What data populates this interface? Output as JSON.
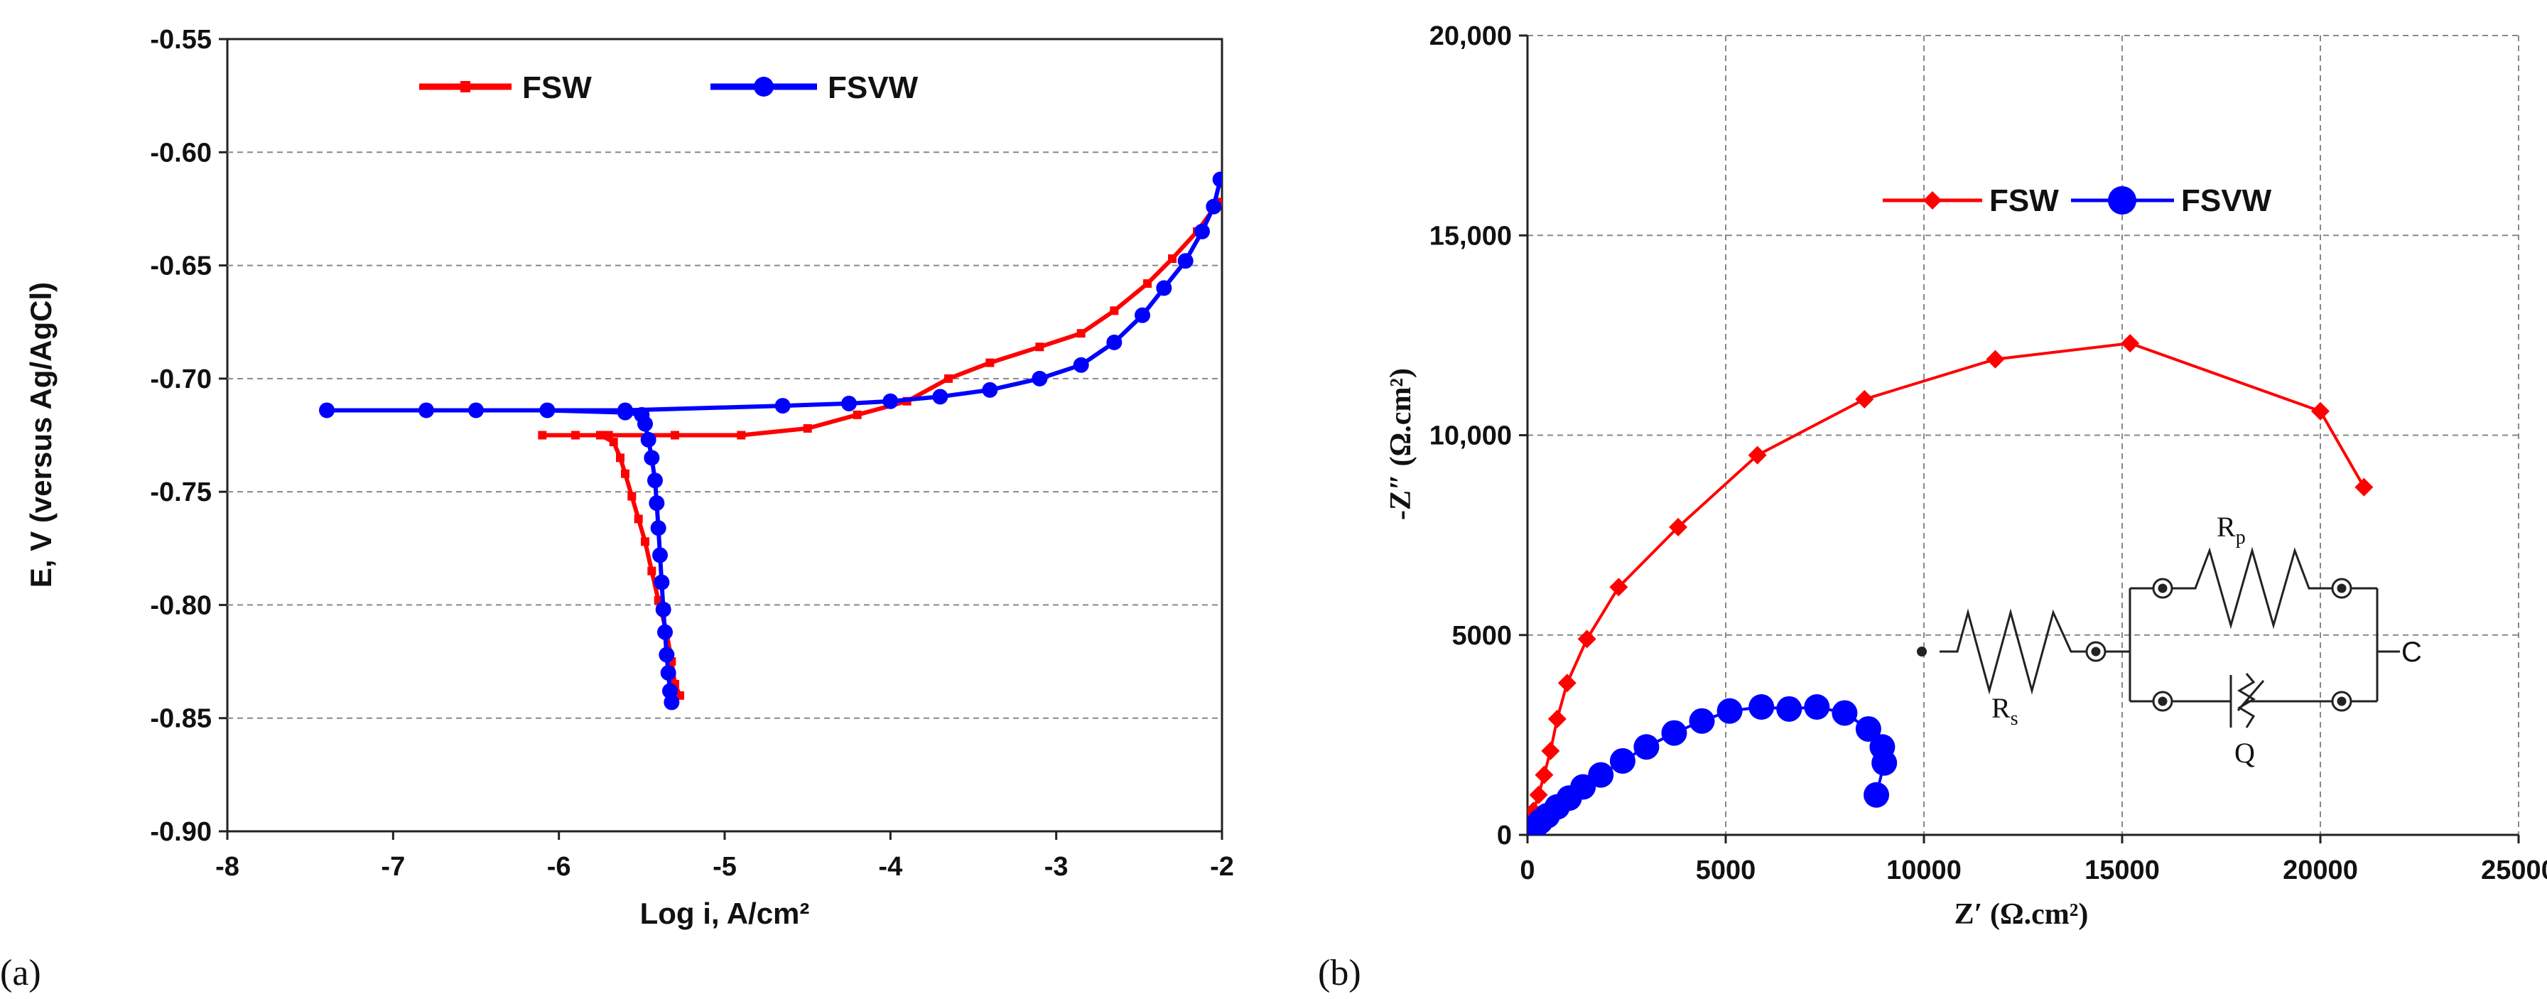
{
  "chart_data": [
    {
      "id": "a",
      "type": "line",
      "panel_label": "(a)",
      "xlabel": "Log i, A/cm²",
      "ylabel": "E, V (versus Ag/AgCl)",
      "xlim": [
        -8,
        -2
      ],
      "ylim": [
        -0.9,
        -0.55
      ],
      "x_ticks": [
        -8,
        -7,
        -6,
        -5,
        -4,
        -3,
        -2
      ],
      "y_ticks": [
        -0.9,
        -0.85,
        -0.8,
        -0.75,
        -0.7,
        -0.65,
        -0.6,
        -0.55
      ],
      "y_tick_labels": [
        "-0.90",
        "-0.85",
        "-0.80",
        "-0.75",
        "-0.70",
        "-0.65",
        "-0.60",
        "-0.55"
      ],
      "grid": "horizontal dashed",
      "legend_position": "top",
      "series": [
        {
          "name": "FSW",
          "color": "#ff0000",
          "marker": "dash",
          "points": [
            [
              -5.27,
              -0.84
            ],
            [
              -5.3,
              -0.835
            ],
            [
              -5.32,
              -0.825
            ],
            [
              -5.35,
              -0.812
            ],
            [
              -5.4,
              -0.798
            ],
            [
              -5.44,
              -0.785
            ],
            [
              -5.48,
              -0.772
            ],
            [
              -5.52,
              -0.762
            ],
            [
              -5.56,
              -0.752
            ],
            [
              -5.6,
              -0.742
            ],
            [
              -5.63,
              -0.735
            ],
            [
              -5.67,
              -0.728
            ],
            [
              -5.75,
              -0.725
            ],
            [
              -5.9,
              -0.725
            ],
            [
              -6.1,
              -0.725
            ],
            [
              -5.7,
              -0.725
            ],
            [
              -5.3,
              -0.725
            ],
            [
              -4.9,
              -0.725
            ],
            [
              -4.5,
              -0.722
            ],
            [
              -4.2,
              -0.716
            ],
            [
              -3.9,
              -0.71
            ],
            [
              -3.65,
              -0.7
            ],
            [
              -3.4,
              -0.693
            ],
            [
              -3.1,
              -0.686
            ],
            [
              -2.85,
              -0.68
            ],
            [
              -2.65,
              -0.67
            ],
            [
              -2.45,
              -0.658
            ],
            [
              -2.3,
              -0.647
            ],
            [
              -2.15,
              -0.635
            ],
            [
              -2.02,
              -0.622
            ]
          ]
        },
        {
          "name": "FSVW",
          "color": "#0000ff",
          "marker": "circle",
          "points": [
            [
              -5.32,
              -0.843
            ],
            [
              -5.33,
              -0.838
            ],
            [
              -5.34,
              -0.83
            ],
            [
              -5.35,
              -0.822
            ],
            [
              -5.36,
              -0.812
            ],
            [
              -5.37,
              -0.802
            ],
            [
              -5.38,
              -0.79
            ],
            [
              -5.39,
              -0.778
            ],
            [
              -5.4,
              -0.766
            ],
            [
              -5.41,
              -0.755
            ],
            [
              -5.42,
              -0.745
            ],
            [
              -5.44,
              -0.735
            ],
            [
              -5.46,
              -0.727
            ],
            [
              -5.48,
              -0.72
            ],
            [
              -5.5,
              -0.716
            ],
            [
              -5.6,
              -0.715
            ],
            [
              -6.07,
              -0.714
            ],
            [
              -6.8,
              -0.714
            ],
            [
              -7.4,
              -0.714
            ],
            [
              -6.5,
              -0.714
            ],
            [
              -5.6,
              -0.714
            ],
            [
              -4.65,
              -0.712
            ],
            [
              -4.25,
              -0.711
            ],
            [
              -4.0,
              -0.71
            ],
            [
              -3.7,
              -0.708
            ],
            [
              -3.4,
              -0.705
            ],
            [
              -3.1,
              -0.7
            ],
            [
              -2.85,
              -0.694
            ],
            [
              -2.65,
              -0.684
            ],
            [
              -2.48,
              -0.672
            ],
            [
              -2.35,
              -0.66
            ],
            [
              -2.22,
              -0.648
            ],
            [
              -2.12,
              -0.635
            ],
            [
              -2.05,
              -0.624
            ],
            [
              -2.01,
              -0.612
            ]
          ]
        }
      ]
    },
    {
      "id": "b",
      "type": "scatter-line",
      "panel_label": "(b)",
      "xlabel": "Z′ (Ω.cm²)",
      "ylabel": "-Z″ (Ω.cm²)",
      "xlim": [
        0,
        25000
      ],
      "ylim": [
        0,
        20000
      ],
      "x_ticks": [
        0,
        5000,
        10000,
        15000,
        20000,
        25000
      ],
      "x_tick_labels": [
        "0",
        "5000",
        "10000",
        "15000",
        "20000",
        "25000"
      ],
      "y_ticks": [
        0,
        5000,
        10000,
        15000,
        20000
      ],
      "y_tick_labels": [
        "0",
        "5000",
        "10,000",
        "15,000",
        "20,000"
      ],
      "grid": "dashed both",
      "legend_position": "top-center",
      "series": [
        {
          "name": "FSW",
          "color": "#ff0000",
          "marker": "diamond",
          "points": [
            [
              0,
              0
            ],
            [
              60,
              250
            ],
            [
              150,
              600
            ],
            [
              280,
              1000
            ],
            [
              420,
              1500
            ],
            [
              580,
              2100
            ],
            [
              750,
              2900
            ],
            [
              1000,
              3800
            ],
            [
              1500,
              4900
            ],
            [
              2300,
              6200
            ],
            [
              3800,
              7700
            ],
            [
              5800,
              9500
            ],
            [
              8500,
              10900
            ],
            [
              11800,
              11900
            ],
            [
              15200,
              12300
            ],
            [
              20000,
              10600
            ],
            [
              21100,
              8700
            ]
          ]
        },
        {
          "name": "FSVW",
          "color": "#0000ff",
          "marker": "circle",
          "points": [
            [
              0,
              0
            ],
            [
              80,
              80
            ],
            [
              180,
              180
            ],
            [
              320,
              330
            ],
            [
              500,
              480
            ],
            [
              750,
              700
            ],
            [
              1050,
              920
            ],
            [
              1400,
              1200
            ],
            [
              1850,
              1500
            ],
            [
              2400,
              1850
            ],
            [
              3000,
              2200
            ],
            [
              3700,
              2550
            ],
            [
              4400,
              2850
            ],
            [
              5100,
              3100
            ],
            [
              5900,
              3200
            ],
            [
              6600,
              3150
            ],
            [
              7300,
              3200
            ],
            [
              8000,
              3050
            ],
            [
              8600,
              2650
            ],
            [
              8950,
              2200
            ],
            [
              9000,
              1800
            ],
            [
              8800,
              1000
            ]
          ]
        }
      ],
      "inset_circuit": {
        "labels": {
          "rs": "R",
          "rs_sub": "s",
          "rp": "R",
          "rp_sub": "p",
          "q": "Q",
          "end": "C"
        }
      }
    }
  ]
}
